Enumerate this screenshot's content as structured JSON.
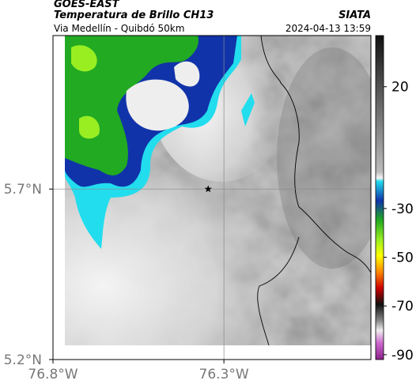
{
  "header": {
    "satellite": "GOES-EAST",
    "product": "Temperatura de Brillo CH13",
    "agency": "SIATA",
    "region": "Via Medellín - Quibdó 50km",
    "timestamp": "2024-04-13 13:59"
  },
  "map": {
    "xlim": [
      -76.8,
      -75.87
    ],
    "ylim": [
      5.2,
      6.15
    ],
    "xticks": [
      {
        "value": -76.8,
        "label": "76.8°W"
      },
      {
        "value": -76.3,
        "label": "76.3°W"
      }
    ],
    "yticks": [
      {
        "value": 5.7,
        "label": "5.7°N"
      },
      {
        "value": 5.2,
        "label": "5.2°N"
      }
    ],
    "marker": {
      "lon": -76.346,
      "lat": 5.7
    }
  },
  "colorbar": {
    "clim": [
      -92,
      41
    ],
    "ticks": [
      20,
      -30,
      -50,
      -70,
      -90
    ]
  }
}
